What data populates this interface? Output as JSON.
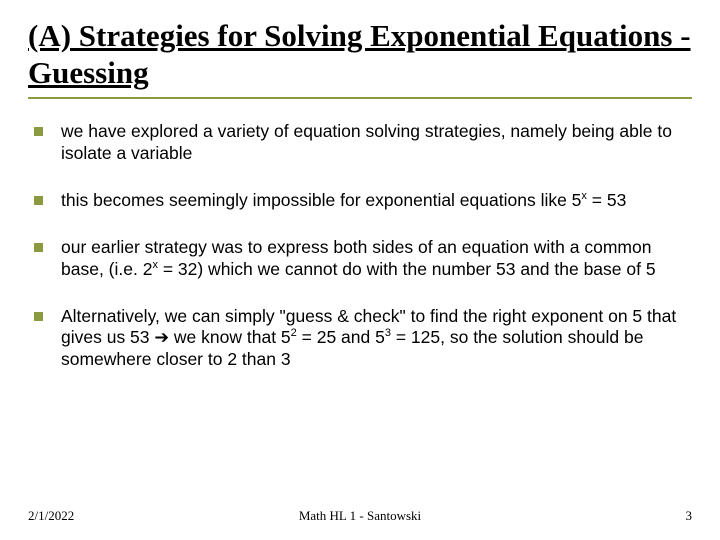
{
  "title": "(A) Strategies for Solving Exponential Equations - Guessing",
  "bullets": [
    {
      "text": "we have explored a variety of equation solving strategies, namely being able to isolate a variable"
    },
    {
      "text_html": "this becomes seemingly impossible for exponential equations like 5<span class=\"super\">x</span> = 53"
    },
    {
      "text_html": "our earlier strategy was to express both sides of an equation with a common base, (i.e. 2<span class=\"super\">x</span> = 32) which we cannot do with the number 53 and the base of 5"
    },
    {
      "text_html": "Alternatively, we can simply \"guess & check\" to find the right exponent on 5 that gives us 53 ➔ we know that 5<span class=\"super\">2</span> = 25 and 5<span class=\"super\">3</span> = 125, so the solution should be somewhere closer to 2 than 3"
    }
  ],
  "footer": {
    "date": "2/1/2022",
    "center": "Math HL 1 - Santowski",
    "page": "3"
  },
  "colors": {
    "accent": "#8a9a41",
    "text": "#000000",
    "background": "#ffffff"
  }
}
